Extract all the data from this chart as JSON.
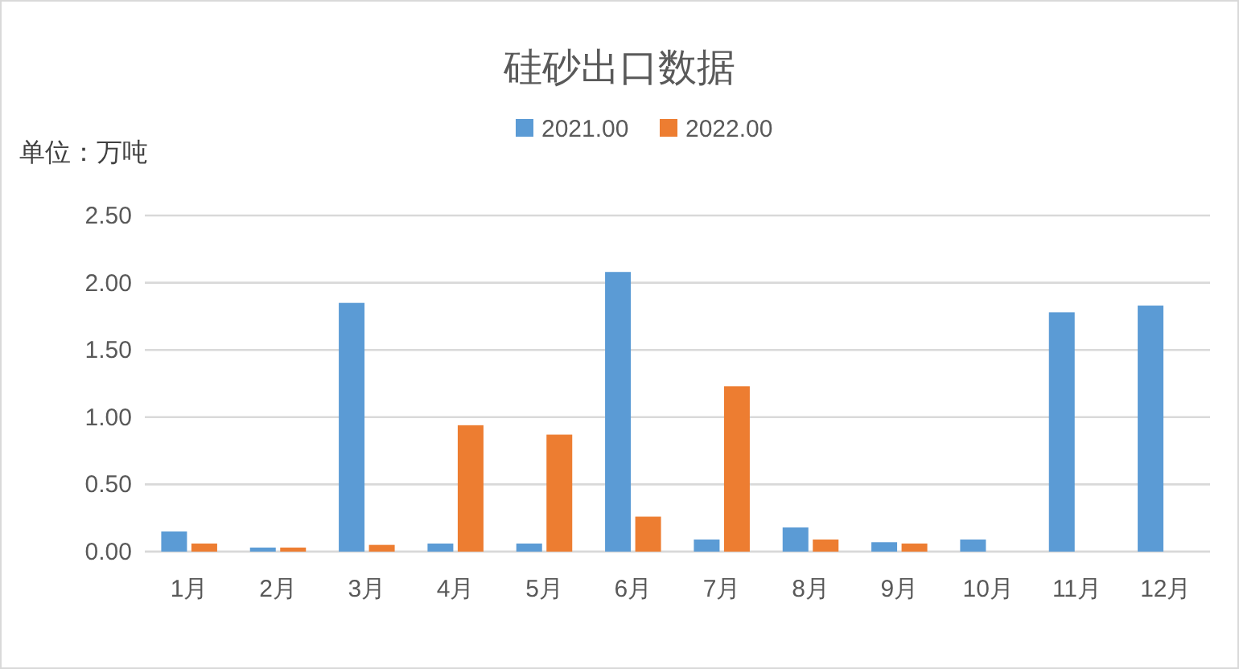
{
  "chart_data": {
    "type": "bar",
    "title": "硅砂出口数据",
    "ylabel": "单位：万吨",
    "categories": [
      "1月",
      "2月",
      "3月",
      "4月",
      "5月",
      "6月",
      "7月",
      "8月",
      "9月",
      "10月",
      "11月",
      "12月"
    ],
    "series": [
      {
        "name": "2021.00",
        "color": "#5b9bd5",
        "values": [
          0.15,
          0.03,
          1.85,
          0.06,
          0.06,
          2.08,
          0.09,
          0.18,
          0.07,
          0.09,
          1.78,
          1.83
        ]
      },
      {
        "name": "2022.00",
        "color": "#ed7d31",
        "values": [
          0.06,
          0.03,
          0.05,
          0.94,
          0.87,
          0.26,
          1.23,
          0.09,
          0.06,
          null,
          null,
          null
        ]
      }
    ],
    "ylim": [
      0,
      2.5
    ],
    "yticks": [
      {
        "value": 0,
        "label": "0.00"
      },
      {
        "value": 0.5,
        "label": "0.50"
      },
      {
        "value": 1,
        "label": "1.00"
      },
      {
        "value": 1.5,
        "label": "1.50"
      },
      {
        "value": 2,
        "label": "2.00"
      },
      {
        "value": 2.5,
        "label": "2.50"
      }
    ],
    "grid": "y",
    "legend": "top"
  }
}
